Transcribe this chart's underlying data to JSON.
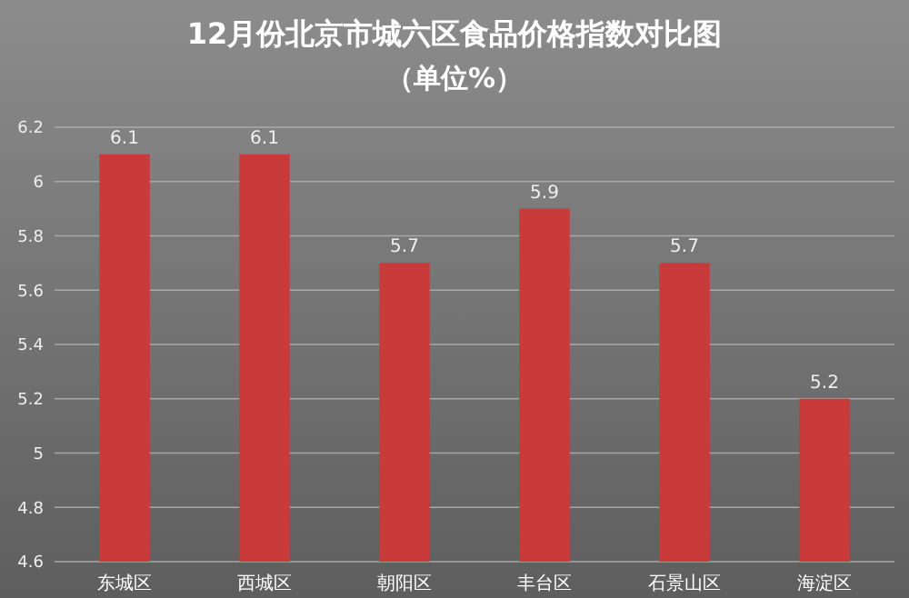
{
  "chart_data": {
    "type": "bar",
    "title": "12月份北京市城六区食品价格指数对比图",
    "subtitle": "（单位%）",
    "categories": [
      "东城区",
      "西城区",
      "朝阳区",
      "丰台区",
      "石景山区",
      "海淀区"
    ],
    "values": [
      6.1,
      6.1,
      5.7,
      5.9,
      5.7,
      5.2
    ],
    "color": "#c93a3a",
    "ylim": [
      4.6,
      6.2
    ],
    "yticks": [
      4.6,
      4.8,
      5,
      5.2,
      5.4,
      5.6,
      5.8,
      6,
      6.2
    ],
    "grid": "y",
    "data_labels": true
  }
}
